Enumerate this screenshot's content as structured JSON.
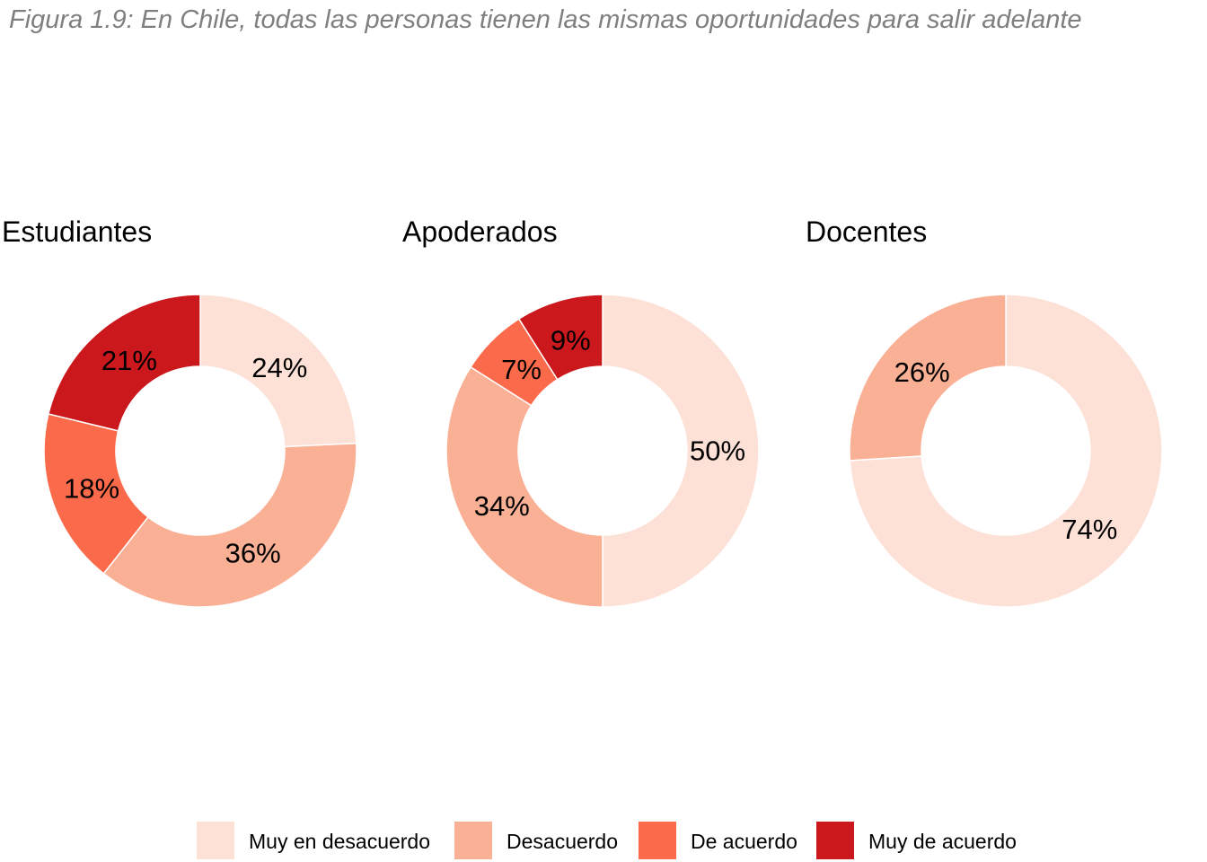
{
  "figure_title": "Figura 1.9: En Chile, todas las personas tienen las mismas oportunidades para salir adelante",
  "colors": {
    "Muy en desacuerdo": "#fde0d6",
    "Desacuerdo": "#fab095",
    "De acuerdo": "#fb6a4a",
    "Muy de acuerdo": "#cb181d"
  },
  "legend": [
    "Muy en desacuerdo",
    "Desacuerdo",
    "De acuerdo",
    "Muy de acuerdo"
  ],
  "chart_data": [
    {
      "type": "pie",
      "title": "Estudiantes",
      "slices": [
        {
          "category": "Muy en desacuerdo",
          "value": 24,
          "label": "24%"
        },
        {
          "category": "Desacuerdo",
          "value": 36,
          "label": "36%"
        },
        {
          "category": "De acuerdo",
          "value": 18,
          "label": "18%"
        },
        {
          "category": "Muy de acuerdo",
          "value": 21,
          "label": "21%"
        }
      ]
    },
    {
      "type": "pie",
      "title": "Apoderados",
      "slices": [
        {
          "category": "Muy en desacuerdo",
          "value": 50,
          "label": "50%"
        },
        {
          "category": "Desacuerdo",
          "value": 34,
          "label": "34%"
        },
        {
          "category": "De acuerdo",
          "value": 7,
          "label": "7%"
        },
        {
          "category": "Muy de acuerdo",
          "value": 9,
          "label": "9%"
        }
      ]
    },
    {
      "type": "pie",
      "title": "Docentes",
      "slices": [
        {
          "category": "Muy en desacuerdo",
          "value": 74,
          "label": "74%"
        },
        {
          "category": "Desacuerdo",
          "value": 26,
          "label": "26%"
        }
      ]
    }
  ]
}
